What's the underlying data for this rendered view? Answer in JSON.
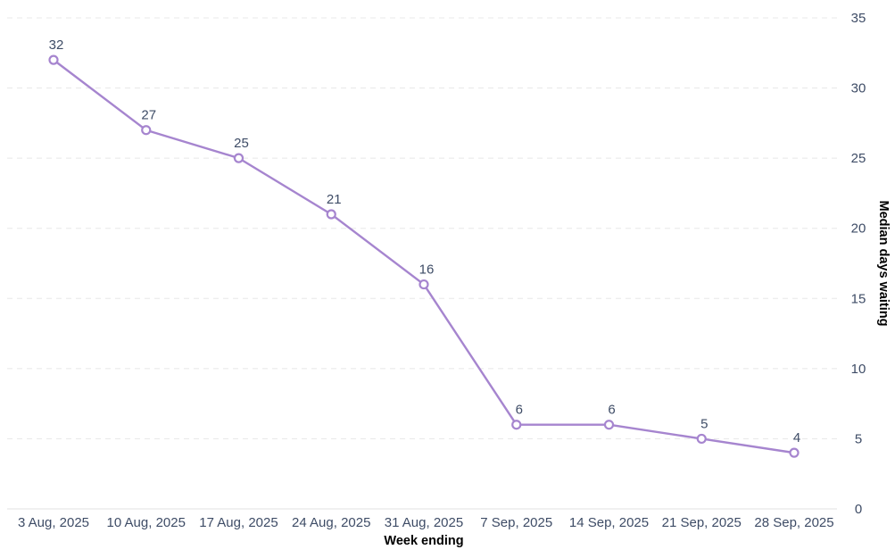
{
  "chart_data": {
    "type": "line",
    "x": [
      "3 Aug, 2025",
      "10 Aug, 2025",
      "17 Aug, 2025",
      "24 Aug, 2025",
      "31 Aug, 2025",
      "7 Sep, 2025",
      "14 Sep, 2025",
      "21 Sep, 2025",
      "28 Sep, 2025"
    ],
    "series": [
      {
        "name": "Median days waiting",
        "values": [
          32,
          27,
          25,
          21,
          16,
          6,
          6,
          5,
          4
        ]
      }
    ],
    "point_labels": [
      "32",
      "27",
      "25",
      "21",
      "16",
      "6",
      "6",
      "5",
      "4"
    ],
    "xlabel": "Week ending",
    "ylabel": "Median days waiting",
    "ylim": [
      0,
      35
    ],
    "yticks": [
      0,
      5,
      10,
      15,
      20,
      25,
      30,
      35
    ],
    "grid": "horizontal-dashed",
    "legend": "none",
    "colors": {
      "line": "#a685cf",
      "marker_fill": "#ffffff",
      "marker_stroke": "#a685cf",
      "text": "#3e4c66",
      "gridline": "#e8e8e8",
      "baseline": "#e2e2e2",
      "background": "#ffffff"
    }
  }
}
